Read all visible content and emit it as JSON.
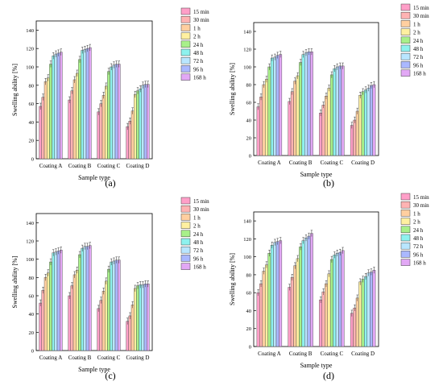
{
  "panels": [
    "(a)",
    "(b)",
    "(c)",
    "(d)"
  ],
  "colors": {
    "15 min": "#ff9fc8",
    "30 min": "#ffb3b3",
    "1 h": "#ffcfa0",
    "2 h": "#fff0a0",
    "24 h": "#a8f08a",
    "48 h": "#8ef2ee",
    "72 h": "#b9e6ff",
    "96 h": "#aab8ff",
    "168 h": "#e2a8f5"
  },
  "chart_data": [
    {
      "type": "bar",
      "panel": "(a)",
      "xlabel": "Sample type",
      "ylabel": "Swelling ability [%]",
      "ylim": [
        0,
        150
      ],
      "yticks": [
        0,
        20,
        40,
        60,
        80,
        100,
        120,
        140
      ],
      "categories": [
        "Coating A",
        "Coating B",
        "Coating C",
        "Coating D"
      ],
      "legend_position": "top-right",
      "series": [
        {
          "name": "15 min",
          "values": [
            57,
            64,
            51,
            35
          ]
        },
        {
          "name": "30 min",
          "values": [
            67,
            74,
            60,
            41
          ]
        },
        {
          "name": "1 h",
          "values": [
            84,
            86,
            69,
            52
          ]
        },
        {
          "name": "2 h",
          "values": [
            88,
            93,
            79,
            70
          ]
        },
        {
          "name": "24 h",
          "values": [
            103,
            108,
            95,
            74
          ]
        },
        {
          "name": "48 h",
          "values": [
            112,
            118,
            100,
            76
          ]
        },
        {
          "name": "72 h",
          "values": [
            114,
            119,
            102,
            80
          ]
        },
        {
          "name": "96 h",
          "values": [
            115,
            120,
            103,
            81
          ]
        },
        {
          "name": "168 h",
          "values": [
            116,
            121,
            103,
            81
          ]
        }
      ]
    },
    {
      "type": "bar",
      "panel": "(b)",
      "xlabel": "Sample type",
      "ylabel": "Swelling ability [%]",
      "ylim": [
        0,
        150
      ],
      "yticks": [
        0,
        20,
        40,
        60,
        80,
        100,
        120,
        140
      ],
      "categories": [
        "Coating A",
        "Coating B",
        "Coating C",
        "Coating D"
      ],
      "legend_position": "top-right",
      "series": [
        {
          "name": "15 min",
          "values": [
            55,
            61,
            48,
            34
          ]
        },
        {
          "name": "30 min",
          "values": [
            66,
            72,
            57,
            40
          ]
        },
        {
          "name": "1 h",
          "values": [
            80,
            84,
            67,
            50
          ]
        },
        {
          "name": "2 h",
          "values": [
            86,
            90,
            76,
            68
          ]
        },
        {
          "name": "24 h",
          "values": [
            100,
            105,
            91,
            72
          ]
        },
        {
          "name": "48 h",
          "values": [
            110,
            114,
            98,
            74
          ]
        },
        {
          "name": "72 h",
          "values": [
            111,
            116,
            100,
            76
          ]
        },
        {
          "name": "96 h",
          "values": [
            113,
            117,
            101,
            79
          ]
        },
        {
          "name": "168 h",
          "values": [
            114,
            117,
            101,
            80
          ]
        }
      ]
    },
    {
      "type": "bar",
      "panel": "(c)",
      "xlabel": "Sample type",
      "ylabel": "Swelling ability [%]",
      "ylim": [
        0,
        150
      ],
      "yticks": [
        0,
        20,
        40,
        60,
        80,
        100,
        120,
        140
      ],
      "categories": [
        "Coating A",
        "Coating B",
        "Coating C",
        "Coating D"
      ],
      "legend_position": "top-right",
      "series": [
        {
          "name": "15 min",
          "values": [
            52,
            60,
            46,
            32
          ]
        },
        {
          "name": "30 min",
          "values": [
            66,
            71,
            55,
            38
          ]
        },
        {
          "name": "1 h",
          "values": [
            80,
            83,
            65,
            50
          ]
        },
        {
          "name": "2 h",
          "values": [
            85,
            88,
            76,
            68
          ]
        },
        {
          "name": "24 h",
          "values": [
            97,
            105,
            89,
            71
          ]
        },
        {
          "name": "48 h",
          "values": [
            107,
            112,
            97,
            72
          ]
        },
        {
          "name": "72 h",
          "values": [
            108,
            114,
            98,
            72
          ]
        },
        {
          "name": "96 h",
          "values": [
            109,
            114,
            99,
            73
          ]
        },
        {
          "name": "168 h",
          "values": [
            110,
            115,
            99,
            73
          ]
        }
      ]
    },
    {
      "type": "bar",
      "panel": "(d)",
      "xlabel": "Sample type",
      "ylabel": "Swelling ability [%]",
      "ylim": [
        0,
        150
      ],
      "yticks": [
        0,
        20,
        40,
        60,
        80,
        100,
        120,
        140
      ],
      "categories": [
        "Coating A",
        "Coating B",
        "Coating C",
        "Coating D"
      ],
      "legend_position": "top-right",
      "series": [
        {
          "name": "15 min",
          "values": [
            60,
            66,
            52,
            37
          ]
        },
        {
          "name": "30 min",
          "values": [
            70,
            77,
            61,
            43
          ]
        },
        {
          "name": "1 h",
          "values": [
            84,
            90,
            70,
            54
          ]
        },
        {
          "name": "2 h",
          "values": [
            91,
            98,
            81,
            72
          ]
        },
        {
          "name": "24 h",
          "values": [
            104,
            111,
            97,
            75
          ]
        },
        {
          "name": "48 h",
          "values": [
            113,
            118,
            102,
            78
          ]
        },
        {
          "name": "72 h",
          "values": [
            116,
            121,
            104,
            82
          ]
        },
        {
          "name": "96 h",
          "values": [
            117,
            123,
            105,
            83
          ]
        },
        {
          "name": "168 h",
          "values": [
            118,
            126,
            107,
            85
          ]
        }
      ]
    }
  ]
}
